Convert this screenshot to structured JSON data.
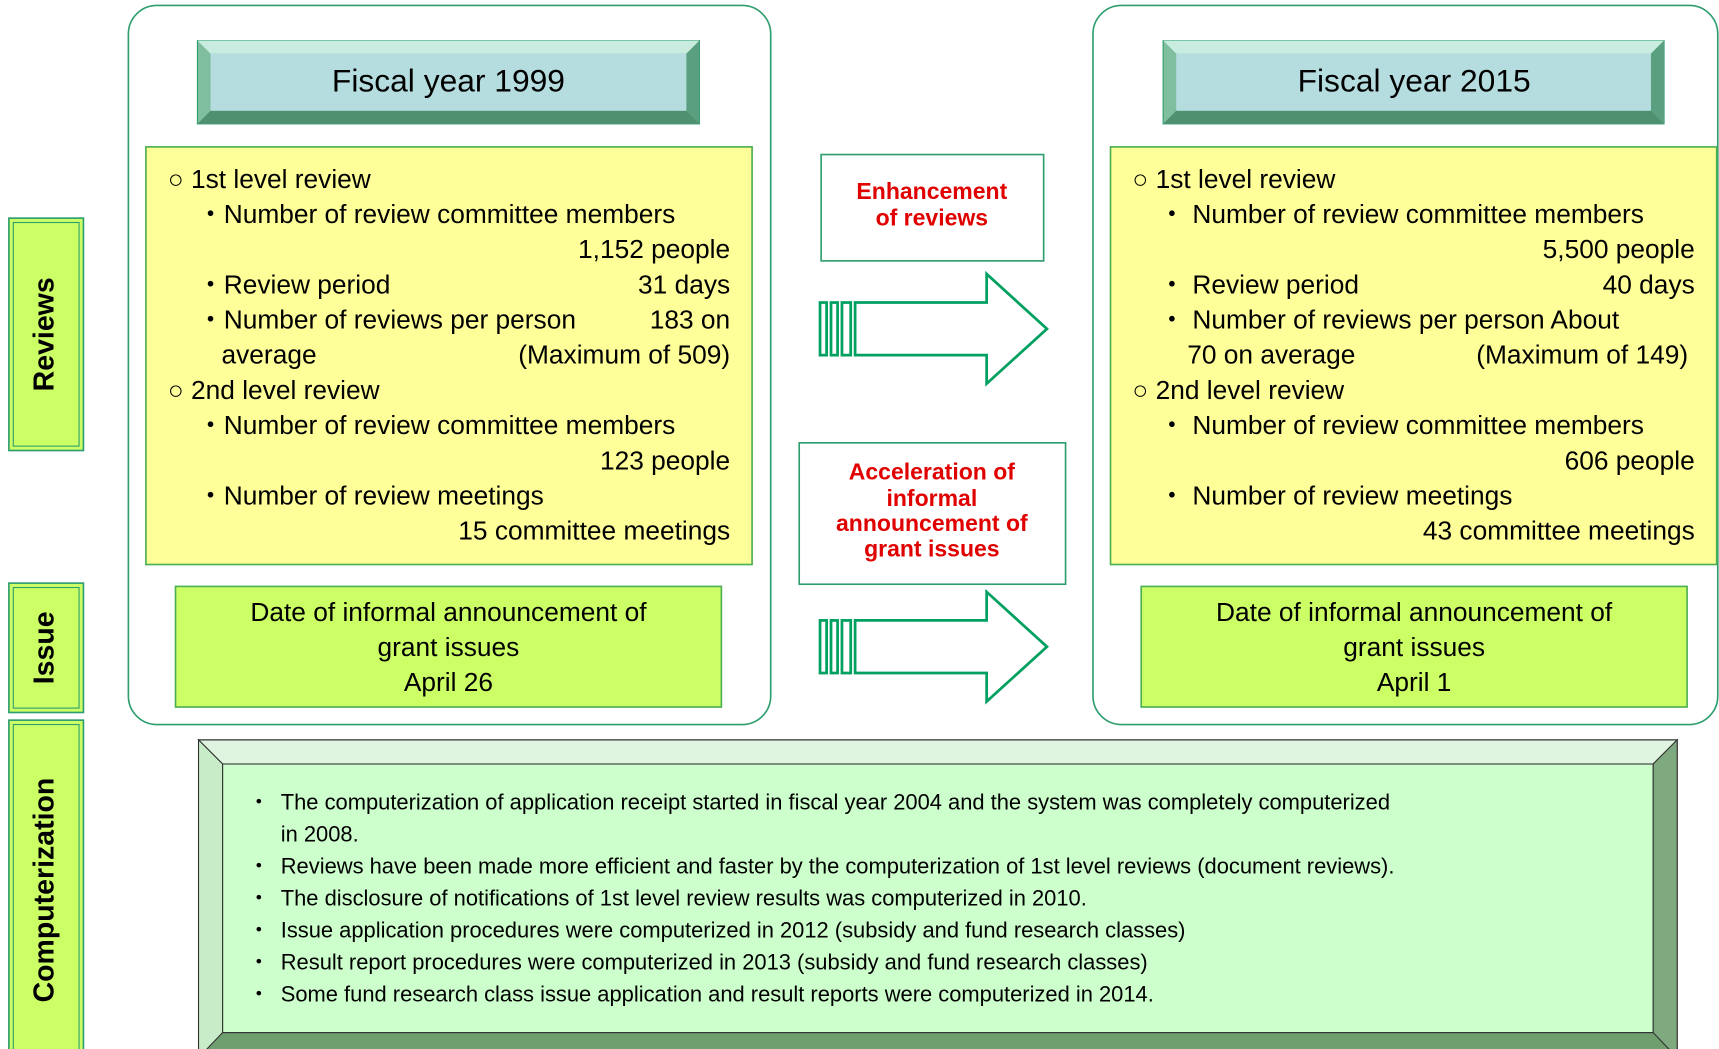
{
  "side_labels": [
    "Reviews",
    "Issue",
    "Computerization"
  ],
  "left": {
    "title": "Fiscal year 1999",
    "rows": [
      {
        "left": "○ 1st level review"
      },
      {
        "left": "・Number of review committee members"
      },
      {
        "right": "1,152 people"
      },
      {
        "left": "・Review period",
        "right": "31 days"
      },
      {
        "left": "・Number of reviews per person",
        "right": "183 on"
      },
      {
        "left": "average",
        "right": "(Maximum of 509)"
      },
      {
        "left": "○ 2nd level review"
      },
      {
        "left": "・Number of review committee members"
      },
      {
        "right": "123 people"
      },
      {
        "left": "・Number of review meetings"
      },
      {
        "right": "15 committee meetings"
      }
    ],
    "issue": [
      "Date of informal announcement of",
      "grant issues",
      "April 26"
    ]
  },
  "right": {
    "title": "Fiscal year 2015",
    "rows": [
      {
        "left": "○ 1st level review"
      },
      {
        "left": "・ Number of review committee members"
      },
      {
        "right": "5,500 people"
      },
      {
        "left": "・ Review period",
        "right": "40 days"
      },
      {
        "left": "・ Number of reviews per person About"
      },
      {
        "left": "70 on average",
        "right": "(Maximum of 149)"
      },
      {
        "left": "○ 2nd level review"
      },
      {
        "left": "・      Number of review committee members"
      },
      {
        "right": "606 people"
      },
      {
        "left": "・      Number of review meetings"
      },
      {
        "right": "43 committee meetings"
      }
    ],
    "issue": [
      "Date of informal announcement of",
      "grant issues",
      "April 1"
    ]
  },
  "arrows": [
    {
      "label": [
        "Enhancement",
        "of reviews"
      ]
    },
    {
      "label": [
        "Acceleration of",
        "informal",
        "announcement of",
        "grant issues"
      ]
    }
  ],
  "computerization": [
    [
      "The computerization of application receipt started in fiscal year 2004 and the system was completely computerized",
      "in 2008."
    ],
    [
      "Reviews have been made more efficient and faster by the computerization of 1st level reviews (document reviews)."
    ],
    [
      "The disclosure of notifications of 1st level review results was computerized in 2010."
    ],
    [
      "Issue application procedures were computerized in 2012 (subsidy and fund research classes)"
    ],
    [
      "Result report procedures were computerized in 2013 (subsidy and fund research classes)"
    ],
    [
      "Some fund research class issue application and result reports were computerized in 2014."
    ]
  ]
}
